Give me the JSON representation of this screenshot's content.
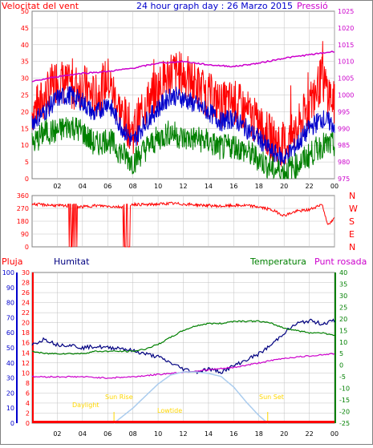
{
  "header": {
    "title": "24 hour graph day : 26 Marzo 2015",
    "left_label": "Velocitat del vent",
    "right_label": "Pressió"
  },
  "colors": {
    "wind_gust": "#ff0000",
    "wind_avg": "#0000cc",
    "wind_low": "#008000",
    "pressure": "#cc00cc",
    "direction": "#ff0000",
    "humidity": "#000080",
    "temperature": "#008000",
    "dewpoint": "#cc00cc",
    "solar": "#aaccee",
    "rain": "#ff0000",
    "grid": "#c0c0c0",
    "frame": "#808080",
    "day_labels": "#ffd700"
  },
  "panel2_labels": {
    "directions": [
      "N",
      "W",
      "S",
      "E",
      "N"
    ]
  },
  "panel3_labels": {
    "rain": "Pluja",
    "humidity": "Humitat",
    "temperature": "Temperatura",
    "dewpoint": "Punt rosada",
    "sunrise": "Sun Rise",
    "sunset": "Sun Set",
    "daylight": "Daylight",
    "lowtide": "Lowtide"
  },
  "chart_data": [
    {
      "type": "line",
      "title": "24 hour graph day : 26 Marzo 2015",
      "ylabel": "Velocitat del vent",
      "y2label": "Pressió",
      "x_ticks": [
        "02",
        "04",
        "06",
        "08",
        "10",
        "12",
        "14",
        "16",
        "18",
        "20",
        "22",
        "00"
      ],
      "xlim": [
        0,
        24
      ],
      "ylim": [
        0,
        50
      ],
      "y_ticks": [
        0,
        5,
        10,
        15,
        20,
        25,
        30,
        35,
        40,
        45,
        50
      ],
      "y2lim": [
        975,
        1025
      ],
      "y2_ticks": [
        975,
        980,
        985,
        990,
        995,
        1000,
        1005,
        1010,
        1015,
        1020,
        1025
      ],
      "grid": true,
      "series": [
        {
          "key": "gust",
          "axis": "left",
          "x": [
            0,
            1,
            2,
            3,
            4,
            5,
            6,
            7,
            8,
            9,
            10,
            11,
            12,
            13,
            14,
            15,
            16,
            17,
            18,
            19,
            20,
            21,
            22,
            23,
            24
          ],
          "values": [
            20,
            24,
            30,
            27,
            28,
            24,
            30,
            20,
            14,
            22,
            27,
            32,
            31,
            28,
            25,
            22,
            23,
            20,
            16,
            12,
            10,
            14,
            22,
            30,
            22
          ]
        },
        {
          "key": "avg",
          "axis": "left",
          "x": [
            0,
            1,
            2,
            3,
            4,
            5,
            6,
            7,
            8,
            9,
            10,
            11,
            12,
            13,
            14,
            15,
            16,
            17,
            18,
            19,
            20,
            21,
            22,
            23,
            24
          ],
          "values": [
            17,
            20,
            24,
            25,
            23,
            19,
            23,
            16,
            11,
            17,
            21,
            25,
            24,
            22,
            20,
            17,
            18,
            15,
            12,
            8,
            6,
            10,
            15,
            18,
            16
          ]
        },
        {
          "key": "low",
          "axis": "left",
          "x": [
            0,
            1,
            2,
            3,
            4,
            5,
            6,
            7,
            8,
            9,
            10,
            11,
            12,
            13,
            14,
            15,
            16,
            17,
            18,
            19,
            20,
            21,
            22,
            23,
            24
          ],
          "values": [
            10,
            14,
            14,
            16,
            14,
            10,
            12,
            8,
            5,
            9,
            12,
            14,
            12,
            12,
            11,
            9,
            10,
            8,
            6,
            3,
            2,
            4,
            7,
            10,
            10
          ]
        },
        {
          "key": "pressure",
          "axis": "right",
          "x": [
            0,
            2,
            4,
            6,
            8,
            10,
            12,
            14,
            16,
            18,
            20,
            22,
            24
          ],
          "values": [
            1004,
            1005.5,
            1006.5,
            1007,
            1008,
            1009.5,
            1010,
            1009,
            1008.5,
            1009.5,
            1011,
            1012,
            1013
          ]
        }
      ]
    },
    {
      "type": "line",
      "x_ticks": [
        "02",
        "04",
        "06",
        "08",
        "10",
        "12",
        "14",
        "16",
        "18",
        "20",
        "22",
        "00"
      ],
      "xlim": [
        0,
        24
      ],
      "ylim": [
        0,
        360
      ],
      "y_ticks": [
        0,
        90,
        180,
        270,
        360
      ],
      "grid": true,
      "series": [
        {
          "key": "direction",
          "x": [
            0,
            1,
            2,
            3,
            4,
            5,
            6,
            7,
            8,
            9,
            10,
            11,
            12,
            13,
            14,
            15,
            16,
            17,
            18,
            19,
            20,
            21,
            22,
            23,
            23.5,
            24
          ],
          "values": [
            300,
            295,
            290,
            285,
            280,
            290,
            285,
            280,
            300,
            295,
            300,
            305,
            300,
            295,
            290,
            285,
            290,
            290,
            280,
            260,
            220,
            250,
            260,
            300,
            150,
            200
          ]
        }
      ]
    },
    {
      "type": "line",
      "x_ticks": [
        "02",
        "04",
        "06",
        "08",
        "10",
        "12",
        "14",
        "16",
        "18",
        "20",
        "22",
        "00"
      ],
      "xlim": [
        0,
        24
      ],
      "y_humidity_ticks": [
        0,
        10,
        20,
        30,
        40,
        50,
        60,
        70,
        80,
        90,
        100
      ],
      "y_humidity_lim": [
        0,
        100
      ],
      "y_rain_ticks": [
        0,
        2,
        4,
        6,
        8,
        10,
        12,
        14,
        16,
        18,
        20,
        22,
        24,
        26,
        28,
        30
      ],
      "y_rain_lim": [
        0,
        30
      ],
      "y_temp_ticks": [
        -25,
        -20,
        -15,
        -10,
        -5,
        0,
        5,
        10,
        15,
        20,
        25,
        30,
        35,
        40
      ],
      "y_temp_lim": [
        -25,
        40
      ],
      "grid": true,
      "series": [
        {
          "key": "humidity",
          "axis": "humidity",
          "x": [
            0,
            1,
            2,
            3,
            4,
            5,
            6,
            7,
            8,
            9,
            10,
            11,
            12,
            13,
            14,
            15,
            16,
            17,
            18,
            19,
            20,
            21,
            22,
            23,
            24
          ],
          "values": [
            52,
            56,
            52,
            52,
            50,
            51,
            50,
            50,
            48,
            46,
            44,
            40,
            36,
            34,
            36,
            34,
            38,
            42,
            46,
            52,
            60,
            66,
            68,
            66,
            68
          ]
        },
        {
          "key": "temperature",
          "axis": "temp",
          "x": [
            0,
            1,
            2,
            3,
            4,
            5,
            6,
            7,
            8,
            9,
            10,
            11,
            12,
            13,
            14,
            15,
            16,
            17,
            18,
            19,
            20,
            21,
            22,
            23,
            24
          ],
          "values": [
            6,
            5,
            5,
            5,
            5,
            6,
            6,
            6,
            6,
            7,
            9,
            12,
            15,
            17,
            18,
            18,
            19,
            19,
            19,
            18,
            16,
            15,
            14,
            14,
            13
          ]
        },
        {
          "key": "dewpoint",
          "axis": "temp",
          "x": [
            0,
            2,
            4,
            6,
            8,
            10,
            12,
            14,
            16,
            18,
            20,
            22,
            24
          ],
          "values": [
            -5,
            -5,
            -5,
            -5.5,
            -5,
            -4,
            -3,
            -2,
            -1,
            1,
            3,
            4,
            5
          ]
        },
        {
          "key": "solar",
          "axis": "humidity",
          "x": [
            6.5,
            8,
            10,
            11,
            12,
            13,
            14,
            15,
            16,
            17,
            18,
            18.7
          ],
          "values": [
            0,
            10,
            26,
            32,
            34,
            34,
            33,
            31,
            24,
            14,
            5,
            0
          ]
        }
      ]
    }
  ]
}
